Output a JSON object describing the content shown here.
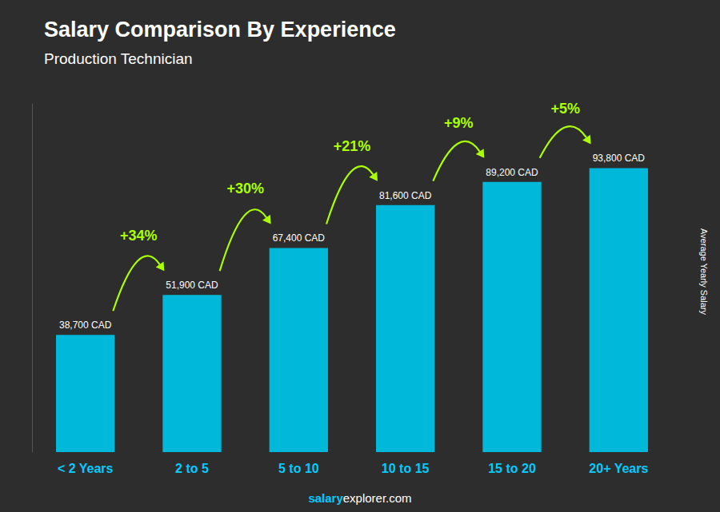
{
  "chart_data": {
    "type": "bar",
    "title": "Salary Comparison By Experience",
    "subtitle": "Production Technician",
    "ylabel": "Average Yearly Salary",
    "categories": [
      "< 2 Years",
      "2 to 5",
      "5 to 10",
      "10 to 15",
      "15 to 20",
      "20+ Years"
    ],
    "values": [
      38700,
      51900,
      67400,
      81600,
      89200,
      93800
    ],
    "value_labels": [
      "38,700 CAD",
      "51,900 CAD",
      "67,400 CAD",
      "81,600 CAD",
      "89,200 CAD",
      "93,800 CAD"
    ],
    "data_labels": true,
    "annotations": [
      "+34%",
      "+30%",
      "+21%",
      "+9%",
      "+5%"
    ],
    "color": "#00b8d9",
    "ylim": [
      0,
      115000
    ],
    "tick_labels": "x",
    "grid": false,
    "watermark": [
      "salary",
      "explorer.com"
    ]
  }
}
